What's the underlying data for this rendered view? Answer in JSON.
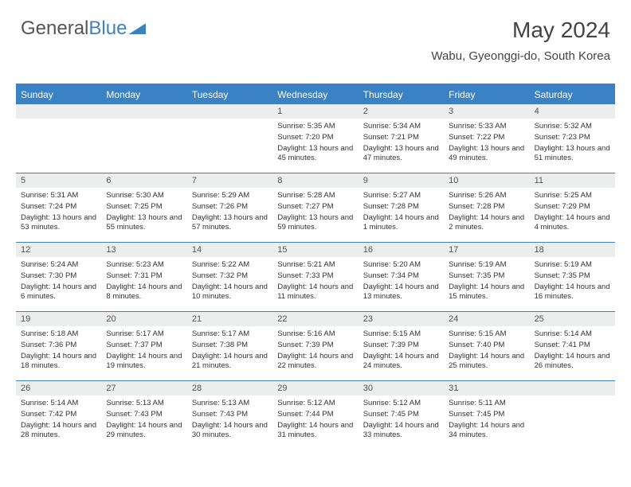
{
  "logo": {
    "part1": "General",
    "part2": "Blue"
  },
  "title": "May 2024",
  "location": "Wabu, Gyeonggi-do, South Korea",
  "dayNames": [
    "Sunday",
    "Monday",
    "Tuesday",
    "Wednesday",
    "Thursday",
    "Friday",
    "Saturday"
  ],
  "colors": {
    "accent": "#3b82c4",
    "daybg": "#eceded",
    "text": "#333"
  },
  "startOffset": 3,
  "days": [
    {
      "n": "1",
      "sunrise": "5:35 AM",
      "sunset": "7:20 PM",
      "dlh": "13",
      "dlm": "45"
    },
    {
      "n": "2",
      "sunrise": "5:34 AM",
      "sunset": "7:21 PM",
      "dlh": "13",
      "dlm": "47"
    },
    {
      "n": "3",
      "sunrise": "5:33 AM",
      "sunset": "7:22 PM",
      "dlh": "13",
      "dlm": "49"
    },
    {
      "n": "4",
      "sunrise": "5:32 AM",
      "sunset": "7:23 PM",
      "dlh": "13",
      "dlm": "51"
    },
    {
      "n": "5",
      "sunrise": "5:31 AM",
      "sunset": "7:24 PM",
      "dlh": "13",
      "dlm": "53"
    },
    {
      "n": "6",
      "sunrise": "5:30 AM",
      "sunset": "7:25 PM",
      "dlh": "13",
      "dlm": "55"
    },
    {
      "n": "7",
      "sunrise": "5:29 AM",
      "sunset": "7:26 PM",
      "dlh": "13",
      "dlm": "57"
    },
    {
      "n": "8",
      "sunrise": "5:28 AM",
      "sunset": "7:27 PM",
      "dlh": "13",
      "dlm": "59"
    },
    {
      "n": "9",
      "sunrise": "5:27 AM",
      "sunset": "7:28 PM",
      "dlh": "14",
      "dlm": "1"
    },
    {
      "n": "10",
      "sunrise": "5:26 AM",
      "sunset": "7:28 PM",
      "dlh": "14",
      "dlm": "2"
    },
    {
      "n": "11",
      "sunrise": "5:25 AM",
      "sunset": "7:29 PM",
      "dlh": "14",
      "dlm": "4"
    },
    {
      "n": "12",
      "sunrise": "5:24 AM",
      "sunset": "7:30 PM",
      "dlh": "14",
      "dlm": "6"
    },
    {
      "n": "13",
      "sunrise": "5:23 AM",
      "sunset": "7:31 PM",
      "dlh": "14",
      "dlm": "8"
    },
    {
      "n": "14",
      "sunrise": "5:22 AM",
      "sunset": "7:32 PM",
      "dlh": "14",
      "dlm": "10"
    },
    {
      "n": "15",
      "sunrise": "5:21 AM",
      "sunset": "7:33 PM",
      "dlh": "14",
      "dlm": "11"
    },
    {
      "n": "16",
      "sunrise": "5:20 AM",
      "sunset": "7:34 PM",
      "dlh": "14",
      "dlm": "13"
    },
    {
      "n": "17",
      "sunrise": "5:19 AM",
      "sunset": "7:35 PM",
      "dlh": "14",
      "dlm": "15"
    },
    {
      "n": "18",
      "sunrise": "5:19 AM",
      "sunset": "7:35 PM",
      "dlh": "14",
      "dlm": "16"
    },
    {
      "n": "19",
      "sunrise": "5:18 AM",
      "sunset": "7:36 PM",
      "dlh": "14",
      "dlm": "18"
    },
    {
      "n": "20",
      "sunrise": "5:17 AM",
      "sunset": "7:37 PM",
      "dlh": "14",
      "dlm": "19"
    },
    {
      "n": "21",
      "sunrise": "5:17 AM",
      "sunset": "7:38 PM",
      "dlh": "14",
      "dlm": "21"
    },
    {
      "n": "22",
      "sunrise": "5:16 AM",
      "sunset": "7:39 PM",
      "dlh": "14",
      "dlm": "22"
    },
    {
      "n": "23",
      "sunrise": "5:15 AM",
      "sunset": "7:39 PM",
      "dlh": "14",
      "dlm": "24"
    },
    {
      "n": "24",
      "sunrise": "5:15 AM",
      "sunset": "7:40 PM",
      "dlh": "14",
      "dlm": "25"
    },
    {
      "n": "25",
      "sunrise": "5:14 AM",
      "sunset": "7:41 PM",
      "dlh": "14",
      "dlm": "26"
    },
    {
      "n": "26",
      "sunrise": "5:14 AM",
      "sunset": "7:42 PM",
      "dlh": "14",
      "dlm": "28"
    },
    {
      "n": "27",
      "sunrise": "5:13 AM",
      "sunset": "7:43 PM",
      "dlh": "14",
      "dlm": "29"
    },
    {
      "n": "28",
      "sunrise": "5:13 AM",
      "sunset": "7:43 PM",
      "dlh": "14",
      "dlm": "30"
    },
    {
      "n": "29",
      "sunrise": "5:12 AM",
      "sunset": "7:44 PM",
      "dlh": "14",
      "dlm": "31"
    },
    {
      "n": "30",
      "sunrise": "5:12 AM",
      "sunset": "7:45 PM",
      "dlh": "14",
      "dlm": "33"
    },
    {
      "n": "31",
      "sunrise": "5:11 AM",
      "sunset": "7:45 PM",
      "dlh": "14",
      "dlm": "34"
    }
  ],
  "labels": {
    "sunrise": "Sunrise:",
    "sunset": "Sunset:",
    "daylight1": "Daylight:",
    "hours": "hours",
    "and": "and",
    "minutes": "minutes."
  }
}
